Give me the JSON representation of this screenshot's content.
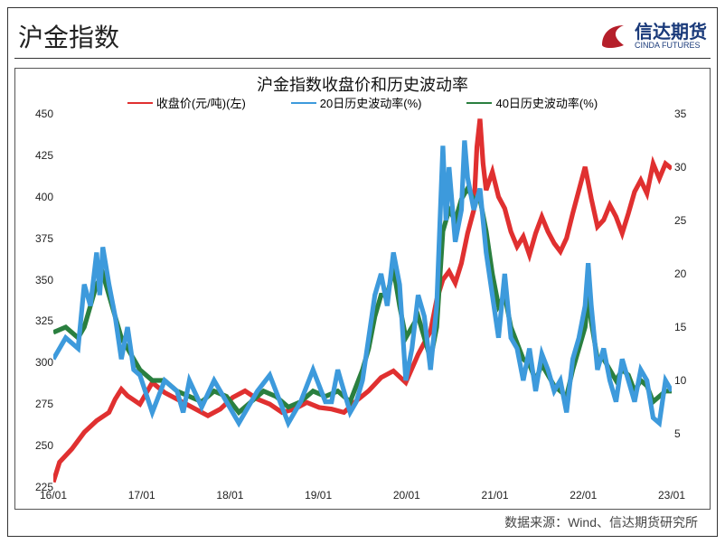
{
  "header": {
    "title": "沪金指数",
    "logo_zh": "信达期货",
    "logo_en": "CINDA FUTURES"
  },
  "chart": {
    "title": "沪金指数收盘价和历史波动率",
    "type": "line",
    "background_color": "#ffffff",
    "border_color": "#555555",
    "title_fontsize": 18,
    "label_fontsize": 13,
    "tick_fontsize": 12,
    "line_width": 1.3,
    "x_axis": {
      "ticks": [
        "16/01",
        "17/01",
        "18/01",
        "19/01",
        "20/01",
        "21/01",
        "22/01",
        "23/01"
      ]
    },
    "y_left": {
      "min": 225,
      "max": 450,
      "step": 25,
      "ticks": [
        225,
        250,
        275,
        300,
        325,
        350,
        375,
        400,
        425,
        450
      ]
    },
    "y_right": {
      "min": 0,
      "max": 35,
      "step": 5,
      "ticks": [
        5,
        10,
        15,
        20,
        25,
        30,
        35
      ]
    },
    "legend": [
      {
        "label": "收盘价(元/吨)(左)",
        "color": "#e03030"
      },
      {
        "label": "20日历史波动率(%)",
        "color": "#3d9adc"
      },
      {
        "label": "40日历史波动率(%)",
        "color": "#2a7f3f"
      }
    ],
    "series": {
      "close": {
        "axis": "left",
        "color": "#e03030",
        "data": [
          [
            0.0,
            228
          ],
          [
            0.01,
            240
          ],
          [
            0.03,
            248
          ],
          [
            0.05,
            258
          ],
          [
            0.07,
            265
          ],
          [
            0.09,
            270
          ],
          [
            0.1,
            278
          ],
          [
            0.11,
            284
          ],
          [
            0.12,
            280
          ],
          [
            0.14,
            275
          ],
          [
            0.16,
            288
          ],
          [
            0.18,
            282
          ],
          [
            0.2,
            278
          ],
          [
            0.23,
            272
          ],
          [
            0.25,
            268
          ],
          [
            0.27,
            272
          ],
          [
            0.29,
            279
          ],
          [
            0.31,
            283
          ],
          [
            0.33,
            278
          ],
          [
            0.35,
            275
          ],
          [
            0.37,
            270
          ],
          [
            0.39,
            272
          ],
          [
            0.41,
            276
          ],
          [
            0.43,
            273
          ],
          [
            0.45,
            272
          ],
          [
            0.47,
            270
          ],
          [
            0.49,
            277
          ],
          [
            0.51,
            283
          ],
          [
            0.53,
            291
          ],
          [
            0.55,
            295
          ],
          [
            0.57,
            288
          ],
          [
            0.59,
            305
          ],
          [
            0.61,
            319
          ],
          [
            0.62,
            338
          ],
          [
            0.63,
            350
          ],
          [
            0.64,
            355
          ],
          [
            0.65,
            348
          ],
          [
            0.66,
            360
          ],
          [
            0.67,
            378
          ],
          [
            0.675,
            385
          ],
          [
            0.68,
            392
          ],
          [
            0.685,
            430
          ],
          [
            0.69,
            447
          ],
          [
            0.695,
            420
          ],
          [
            0.7,
            404
          ],
          [
            0.71,
            415
          ],
          [
            0.72,
            400
          ],
          [
            0.73,
            393
          ],
          [
            0.74,
            379
          ],
          [
            0.75,
            370
          ],
          [
            0.76,
            376
          ],
          [
            0.77,
            365
          ],
          [
            0.78,
            378
          ],
          [
            0.79,
            388
          ],
          [
            0.8,
            379
          ],
          [
            0.81,
            372
          ],
          [
            0.82,
            367
          ],
          [
            0.83,
            375
          ],
          [
            0.84,
            390
          ],
          [
            0.85,
            404
          ],
          [
            0.86,
            418
          ],
          [
            0.87,
            399
          ],
          [
            0.88,
            382
          ],
          [
            0.89,
            386
          ],
          [
            0.9,
            395
          ],
          [
            0.91,
            388
          ],
          [
            0.92,
            378
          ],
          [
            0.93,
            390
          ],
          [
            0.94,
            403
          ],
          [
            0.95,
            410
          ],
          [
            0.96,
            402
          ],
          [
            0.97,
            420
          ],
          [
            0.98,
            411
          ],
          [
            0.99,
            420
          ],
          [
            1.0,
            417
          ]
        ]
      },
      "vol20": {
        "axis": "right",
        "color": "#3d9adc",
        "data": [
          [
            0.0,
            12
          ],
          [
            0.02,
            14
          ],
          [
            0.04,
            13
          ],
          [
            0.05,
            19
          ],
          [
            0.06,
            17
          ],
          [
            0.07,
            22
          ],
          [
            0.075,
            18
          ],
          [
            0.08,
            22.5
          ],
          [
            0.09,
            19
          ],
          [
            0.1,
            16
          ],
          [
            0.11,
            12
          ],
          [
            0.12,
            15
          ],
          [
            0.13,
            11
          ],
          [
            0.14,
            10.5
          ],
          [
            0.16,
            7
          ],
          [
            0.18,
            10
          ],
          [
            0.2,
            9
          ],
          [
            0.21,
            7
          ],
          [
            0.22,
            10
          ],
          [
            0.24,
            7.5
          ],
          [
            0.26,
            10
          ],
          [
            0.28,
            8
          ],
          [
            0.29,
            7
          ],
          [
            0.3,
            6
          ],
          [
            0.31,
            7
          ],
          [
            0.33,
            9
          ],
          [
            0.35,
            10.5
          ],
          [
            0.36,
            9
          ],
          [
            0.38,
            6
          ],
          [
            0.4,
            8
          ],
          [
            0.42,
            11
          ],
          [
            0.44,
            8
          ],
          [
            0.45,
            8
          ],
          [
            0.46,
            11
          ],
          [
            0.48,
            7
          ],
          [
            0.49,
            8
          ],
          [
            0.5,
            10
          ],
          [
            0.51,
            14
          ],
          [
            0.52,
            18
          ],
          [
            0.53,
            20
          ],
          [
            0.54,
            17
          ],
          [
            0.55,
            22
          ],
          [
            0.56,
            19
          ],
          [
            0.57,
            10
          ],
          [
            0.58,
            13
          ],
          [
            0.59,
            18
          ],
          [
            0.6,
            16
          ],
          [
            0.61,
            11
          ],
          [
            0.62,
            17
          ],
          [
            0.63,
            32
          ],
          [
            0.635,
            25
          ],
          [
            0.64,
            30
          ],
          [
            0.65,
            23
          ],
          [
            0.66,
            26
          ],
          [
            0.665,
            32.5
          ],
          [
            0.67,
            29
          ],
          [
            0.68,
            26
          ],
          [
            0.69,
            28
          ],
          [
            0.7,
            22
          ],
          [
            0.71,
            18
          ],
          [
            0.72,
            14
          ],
          [
            0.73,
            20
          ],
          [
            0.74,
            14
          ],
          [
            0.75,
            13
          ],
          [
            0.76,
            10
          ],
          [
            0.77,
            13
          ],
          [
            0.78,
            9
          ],
          [
            0.79,
            12.5
          ],
          [
            0.8,
            11
          ],
          [
            0.81,
            9
          ],
          [
            0.82,
            10
          ],
          [
            0.83,
            7
          ],
          [
            0.84,
            12
          ],
          [
            0.85,
            14
          ],
          [
            0.86,
            17
          ],
          [
            0.865,
            21
          ],
          [
            0.87,
            17
          ],
          [
            0.88,
            11
          ],
          [
            0.89,
            13
          ],
          [
            0.9,
            10
          ],
          [
            0.91,
            8
          ],
          [
            0.92,
            12
          ],
          [
            0.93,
            10
          ],
          [
            0.94,
            8
          ],
          [
            0.95,
            11
          ],
          [
            0.96,
            10
          ],
          [
            0.97,
            6.5
          ],
          [
            0.98,
            6
          ],
          [
            0.99,
            10
          ],
          [
            1.0,
            9
          ]
        ]
      },
      "vol40": {
        "axis": "right",
        "color": "#2a7f3f",
        "data": [
          [
            0.0,
            14.5
          ],
          [
            0.02,
            15
          ],
          [
            0.04,
            14
          ],
          [
            0.05,
            15
          ],
          [
            0.06,
            17
          ],
          [
            0.07,
            19
          ],
          [
            0.08,
            20
          ],
          [
            0.09,
            18
          ],
          [
            0.1,
            16
          ],
          [
            0.11,
            14
          ],
          [
            0.12,
            13
          ],
          [
            0.14,
            11
          ],
          [
            0.16,
            10
          ],
          [
            0.18,
            10
          ],
          [
            0.2,
            9
          ],
          [
            0.22,
            8.5
          ],
          [
            0.24,
            8
          ],
          [
            0.26,
            9
          ],
          [
            0.28,
            8.5
          ],
          [
            0.3,
            7
          ],
          [
            0.32,
            8
          ],
          [
            0.34,
            9
          ],
          [
            0.36,
            8.5
          ],
          [
            0.38,
            7.5
          ],
          [
            0.4,
            8
          ],
          [
            0.42,
            9
          ],
          [
            0.44,
            8.5
          ],
          [
            0.46,
            9
          ],
          [
            0.48,
            8
          ],
          [
            0.5,
            11
          ],
          [
            0.51,
            13
          ],
          [
            0.52,
            16
          ],
          [
            0.53,
            18
          ],
          [
            0.54,
            18
          ],
          [
            0.55,
            20.5
          ],
          [
            0.56,
            17
          ],
          [
            0.57,
            14
          ],
          [
            0.58,
            15
          ],
          [
            0.59,
            16
          ],
          [
            0.6,
            14
          ],
          [
            0.61,
            12
          ],
          [
            0.62,
            15
          ],
          [
            0.63,
            24
          ],
          [
            0.64,
            26
          ],
          [
            0.65,
            25
          ],
          [
            0.66,
            27
          ],
          [
            0.67,
            28
          ],
          [
            0.68,
            27
          ],
          [
            0.69,
            27
          ],
          [
            0.7,
            24
          ],
          [
            0.71,
            20
          ],
          [
            0.72,
            17
          ],
          [
            0.73,
            18
          ],
          [
            0.74,
            15
          ],
          [
            0.75,
            13.5
          ],
          [
            0.76,
            12
          ],
          [
            0.77,
            11.5
          ],
          [
            0.78,
            10
          ],
          [
            0.79,
            11.5
          ],
          [
            0.8,
            10.5
          ],
          [
            0.81,
            9.5
          ],
          [
            0.82,
            9
          ],
          [
            0.83,
            8.5
          ],
          [
            0.84,
            11
          ],
          [
            0.85,
            13
          ],
          [
            0.86,
            15
          ],
          [
            0.865,
            18
          ],
          [
            0.87,
            15.5
          ],
          [
            0.88,
            12
          ],
          [
            0.89,
            12
          ],
          [
            0.9,
            11
          ],
          [
            0.91,
            10
          ],
          [
            0.92,
            11
          ],
          [
            0.93,
            10.5
          ],
          [
            0.94,
            9
          ],
          [
            0.95,
            10
          ],
          [
            0.96,
            9.5
          ],
          [
            0.97,
            8
          ],
          [
            0.98,
            8.5
          ],
          [
            0.99,
            9
          ],
          [
            1.0,
            9
          ]
        ]
      }
    }
  },
  "source": "数据来源：Wind、信达期货研究所"
}
